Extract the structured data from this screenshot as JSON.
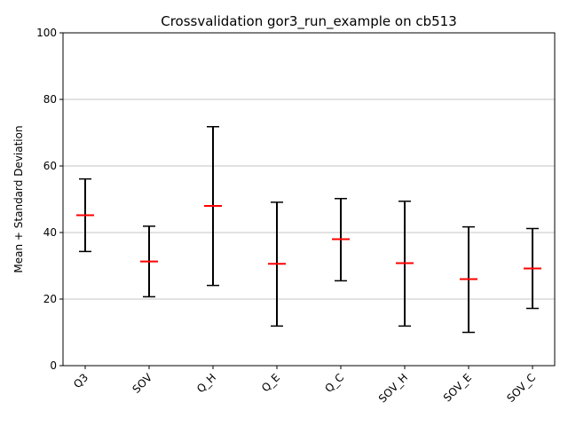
{
  "chart_data": {
    "type": "errorbar",
    "title": "Crossvalidation gor3_run_example on cb513",
    "xlabel": "",
    "ylabel": "Mean + Standard Deviation",
    "ylim": [
      0,
      100
    ],
    "yticks": [
      0,
      20,
      40,
      60,
      80,
      100
    ],
    "grid": "horizontal",
    "categories": [
      "Q3",
      "SOV",
      "Q_H",
      "Q_E",
      "Q_C",
      "SOV_H",
      "SOV_E",
      "SOV_C"
    ],
    "series": [
      {
        "mean": [
          45.2,
          31.3,
          48.0,
          30.6,
          38.0,
          30.8,
          26.0,
          29.2
        ],
        "lower": [
          34.3,
          20.7,
          24.1,
          11.9,
          25.5,
          11.9,
          10.0,
          17.2
        ],
        "upper": [
          56.1,
          41.9,
          71.8,
          49.1,
          50.2,
          49.4,
          41.7,
          41.2
        ]
      }
    ],
    "colors": {
      "mean": "#ff0000",
      "errorbar": "#000000",
      "grid": "#b0b0b0"
    }
  }
}
